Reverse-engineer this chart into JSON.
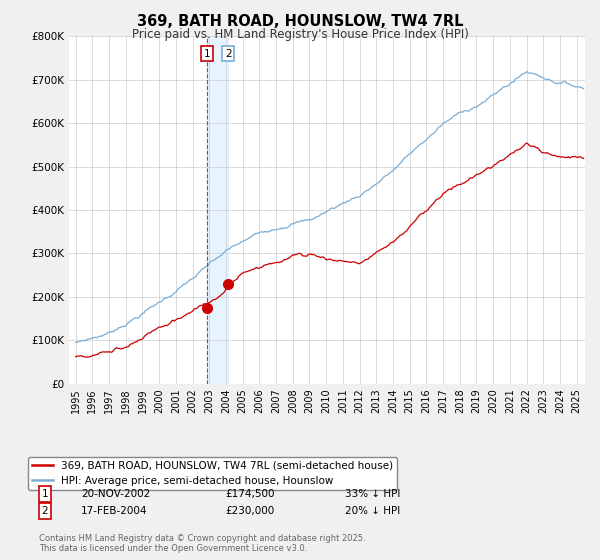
{
  "title": "369, BATH ROAD, HOUNSLOW, TW4 7RL",
  "subtitle": "Price paid vs. HM Land Registry's House Price Index (HPI)",
  "legend_line1": "369, BATH ROAD, HOUNSLOW, TW4 7RL (semi-detached house)",
  "legend_line2": "HPI: Average price, semi-detached house, Hounslow",
  "price_color": "#cc0000",
  "hpi_color": "#7aadd4",
  "annotation1_date": "20-NOV-2002",
  "annotation1_price": "£174,500",
  "annotation1_hpi": "33% ↓ HPI",
  "annotation1_year": 2002.88,
  "annotation1_value": 174500,
  "annotation2_date": "17-FEB-2004",
  "annotation2_price": "£230,000",
  "annotation2_hpi": "20% ↓ HPI",
  "annotation2_year": 2004.13,
  "annotation2_value": 230000,
  "footer": "Contains HM Land Registry data © Crown copyright and database right 2025.\nThis data is licensed under the Open Government Licence v3.0.",
  "ylim": [
    0,
    800000
  ],
  "yticks": [
    0,
    100000,
    200000,
    300000,
    400000,
    500000,
    600000,
    700000,
    800000
  ],
  "ytick_labels": [
    "£0",
    "£100K",
    "£200K",
    "£300K",
    "£400K",
    "£500K",
    "£600K",
    "£700K",
    "£800K"
  ],
  "background_color": "#f0f0f0",
  "plot_background": "#ffffff",
  "grid_color": "#cccccc",
  "shade_color": "#ddeeff",
  "xstart": 1995,
  "xend": 2025.5
}
